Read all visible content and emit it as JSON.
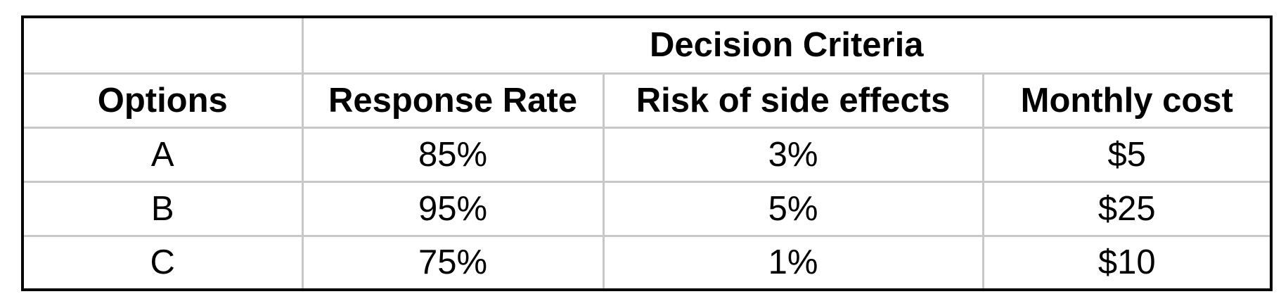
{
  "table": {
    "group_header": "Decision Criteria",
    "columns": [
      "Options",
      "Response Rate",
      "Risk of side effects",
      "Monthly cost"
    ],
    "rows": [
      {
        "option": "A",
        "response_rate": "85%",
        "risk": "3%",
        "cost": "$5"
      },
      {
        "option": "B",
        "response_rate": "95%",
        "risk": "5%",
        "cost": "$25"
      },
      {
        "option": "C",
        "response_rate": "75%",
        "risk": "1%",
        "cost": "$10"
      }
    ]
  }
}
